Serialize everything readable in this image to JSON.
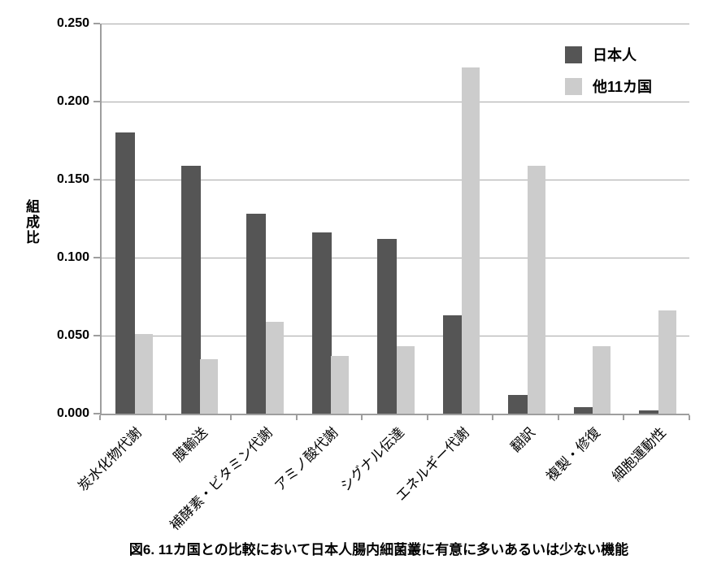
{
  "figure": {
    "caption": "図6. 11カ国との比較において日本人腸内細菌叢に有意に多いあるいは少ない機能"
  },
  "chart_data": {
    "type": "bar",
    "title": "",
    "xlabel": "",
    "ylabel": "組成比",
    "ylim": [
      0,
      0.25
    ],
    "ytick_step": 0.05,
    "ytick_labels": [
      "0.000",
      "0.050",
      "0.100",
      "0.150",
      "0.200",
      "0.250"
    ],
    "grid": true,
    "legend_position": "top-right",
    "axis_color": "#9e9e9e",
    "grid_color": "#a8a8a8",
    "categories": [
      "炭水化物代謝",
      "膜輸送",
      "補酵素・ビタミン代謝",
      "アミノ酸代謝",
      "シグナル伝達",
      "エネルギー代謝",
      "翻訳",
      "複製・修復",
      "細胞運動性"
    ],
    "series": [
      {
        "name": "日本人",
        "color": "#555555",
        "values": [
          0.18,
          0.159,
          0.128,
          0.116,
          0.112,
          0.063,
          0.012,
          0.004,
          0.002
        ]
      },
      {
        "name": "他11カ国",
        "color": "#cccccc",
        "values": [
          0.051,
          0.035,
          0.059,
          0.037,
          0.043,
          0.222,
          0.159,
          0.043,
          0.066
        ]
      }
    ]
  }
}
